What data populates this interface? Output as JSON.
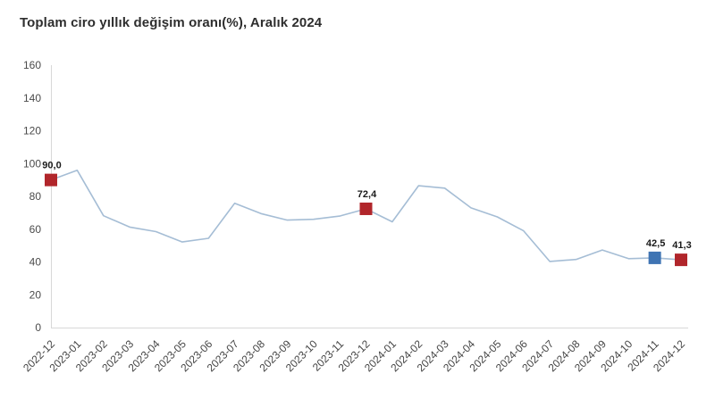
{
  "title": "Toplam ciro yıllık değişim oranı(%), Aralık 2024",
  "chart_data": {
    "type": "line",
    "title": "Toplam ciro yıllık değişim oranı(%), Aralık 2024",
    "xlabel": "",
    "ylabel": "",
    "categories": [
      "2022-12",
      "2023-01",
      "2023-02",
      "2023-03",
      "2023-04",
      "2023-05",
      "2023-06",
      "2023-07",
      "2023-08",
      "2023-09",
      "2023-10",
      "2023-11",
      "2023-12",
      "2024-01",
      "2024-02",
      "2024-03",
      "2024-04",
      "2024-05",
      "2024-06",
      "2024-07",
      "2024-08",
      "2024-09",
      "2024-10",
      "2024-11",
      "2024-12"
    ],
    "values": [
      90.0,
      95.9,
      68.2,
      61.3,
      58.5,
      52.2,
      54.4,
      75.8,
      69.5,
      65.5,
      66.0,
      68.0,
      72.4,
      64.5,
      86.5,
      85.0,
      73.0,
      67.5,
      59.0,
      40.3,
      41.5,
      47.3,
      42.0,
      42.5,
      41.3
    ],
    "ylim": [
      0,
      160
    ],
    "ytick_step": 20,
    "grid": false,
    "legend": false,
    "line_color": "#a5bdd5",
    "axis_color": "#d8d8d8",
    "highlighted_points": [
      {
        "category": "2022-12",
        "value": 90.0,
        "label": "90,0",
        "color": "#b1262b"
      },
      {
        "category": "2023-12",
        "value": 72.4,
        "label": "72,4",
        "color": "#b1262b"
      },
      {
        "category": "2024-11",
        "value": 42.5,
        "label": "42,5",
        "color": "#3f74b3"
      },
      {
        "category": "2024-12",
        "value": 41.3,
        "label": "41,3",
        "color": "#b1262b"
      }
    ]
  }
}
